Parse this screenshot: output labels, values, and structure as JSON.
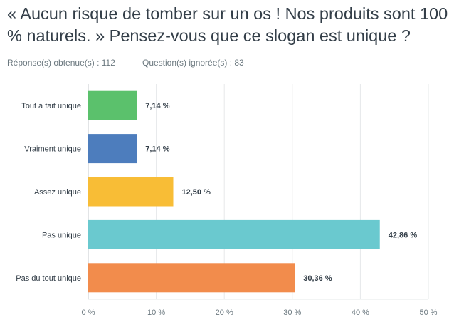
{
  "question": {
    "title": "« Aucun risque de tomber sur un os ! Nos produits sont 100 % naturels. » Pensez-vous que ce slogan est unique ?",
    "responses_label": "Réponse(s) obtenue(s) : 112",
    "skipped_label": "Question(s) ignorée(s) : 83"
  },
  "chart_data": {
    "type": "bar",
    "orientation": "horizontal",
    "categories": [
      "Tout à fait unique",
      "Vraiment unique",
      "Assez unique",
      "Pas unique",
      "Pas du tout unique"
    ],
    "values": [
      7.14,
      7.14,
      12.5,
      42.86,
      30.36
    ],
    "value_labels": [
      "7,14 %",
      "7,14 %",
      "12,50 %",
      "42,86 %",
      "30,36 %"
    ],
    "colors": [
      "#5bc16c",
      "#4d7dbd",
      "#f8bd36",
      "#6ac9cf",
      "#f28c4c"
    ],
    "xlim": [
      0,
      50
    ],
    "ticks": [
      0,
      10,
      20,
      30,
      40,
      50
    ],
    "tick_labels": [
      "0 %",
      "10 %",
      "20 %",
      "30 %",
      "40 %",
      "50 %"
    ],
    "grid": true
  }
}
